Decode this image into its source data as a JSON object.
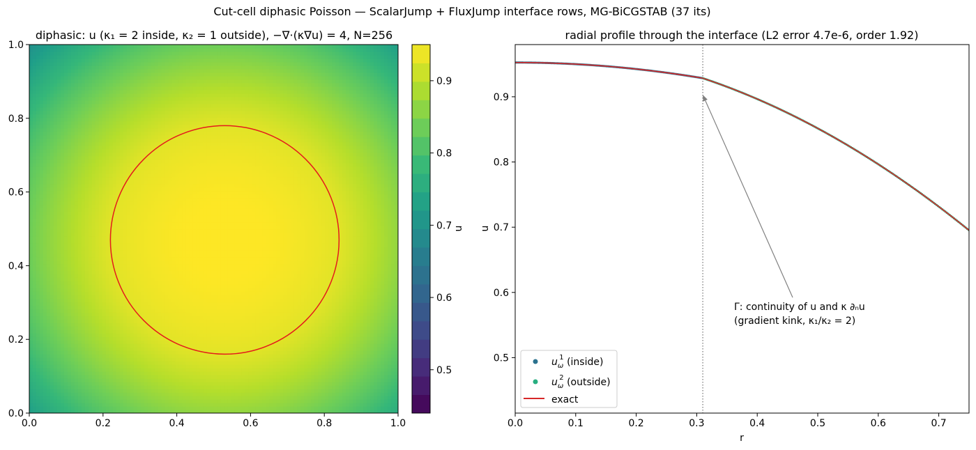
{
  "figure": {
    "suptitle": "Cut-cell diphasic Poisson — ScalarJump + FluxJump interface rows, MG-BiCGSTAB (37 its)"
  },
  "chart_data": [
    {
      "type": "heatmap",
      "title": "diphasic: u (κ₁ = 2 inside, κ₂ = 1 outside), −∇·(κ∇u) = 4, N=256",
      "xlabel": "",
      "ylabel": "",
      "xlim": [
        0,
        1
      ],
      "ylim": [
        0,
        1
      ],
      "xticks": [
        "0.0",
        "0.2",
        "0.4",
        "0.6",
        "0.8",
        "1.0"
      ],
      "yticks": [
        "0.0",
        "0.2",
        "0.4",
        "0.6",
        "0.8",
        "1.0"
      ],
      "interface_circle": {
        "center": [
          0.53,
          0.47
        ],
        "radius": 0.31,
        "color": "#e41a1c"
      },
      "colorbar": {
        "label": "u",
        "range": [
          0.44,
          0.95
        ],
        "ticks": [
          "0.5",
          "0.6",
          "0.7",
          "0.8",
          "0.9"
        ],
        "colormap": "viridis"
      },
      "field": {
        "kappa_inside": 2,
        "kappa_outside": 1,
        "u_center": 0.9525
      }
    },
    {
      "type": "line",
      "title": "radial profile through the interface  (L2 error 4.7e-6, order 1.92)",
      "xlabel": "r",
      "ylabel": "u",
      "xlim": [
        0,
        0.75
      ],
      "ylim": [
        0.415,
        0.98
      ],
      "xticks": [
        "0.0",
        "0.1",
        "0.2",
        "0.3",
        "0.4",
        "0.5",
        "0.6",
        "0.7"
      ],
      "yticks": [
        "0.5",
        "0.6",
        "0.7",
        "0.8",
        "0.9"
      ],
      "interface_r": 0.31,
      "grid": false,
      "series": [
        {
          "name": "u_ω¹ (inside)",
          "name_main": "u",
          "name_sub": "ω",
          "name_sup": "1",
          "name_rest": " (inside)",
          "kind": "scatter",
          "color": "#2c728e",
          "r_range": [
            0,
            0.31
          ]
        },
        {
          "name": "u_ω² (outside)",
          "name_main": "u",
          "name_sub": "ω",
          "name_sup": "2",
          "name_rest": " (outside)",
          "kind": "scatter",
          "color": "#28ae80",
          "r_range": [
            0.31,
            0.75
          ]
        },
        {
          "name": "exact",
          "kind": "line",
          "color": "#d62728",
          "r_range": [
            0,
            0.75
          ]
        }
      ],
      "annotation": {
        "line1": "Γ: continuity of u and κ ∂ₙu",
        "line2": "(gradient kink, κ₁/κ₂ = 2)",
        "target_r": 0.31,
        "target_u": 0.903
      },
      "legend_placement": "lower-left"
    }
  ]
}
